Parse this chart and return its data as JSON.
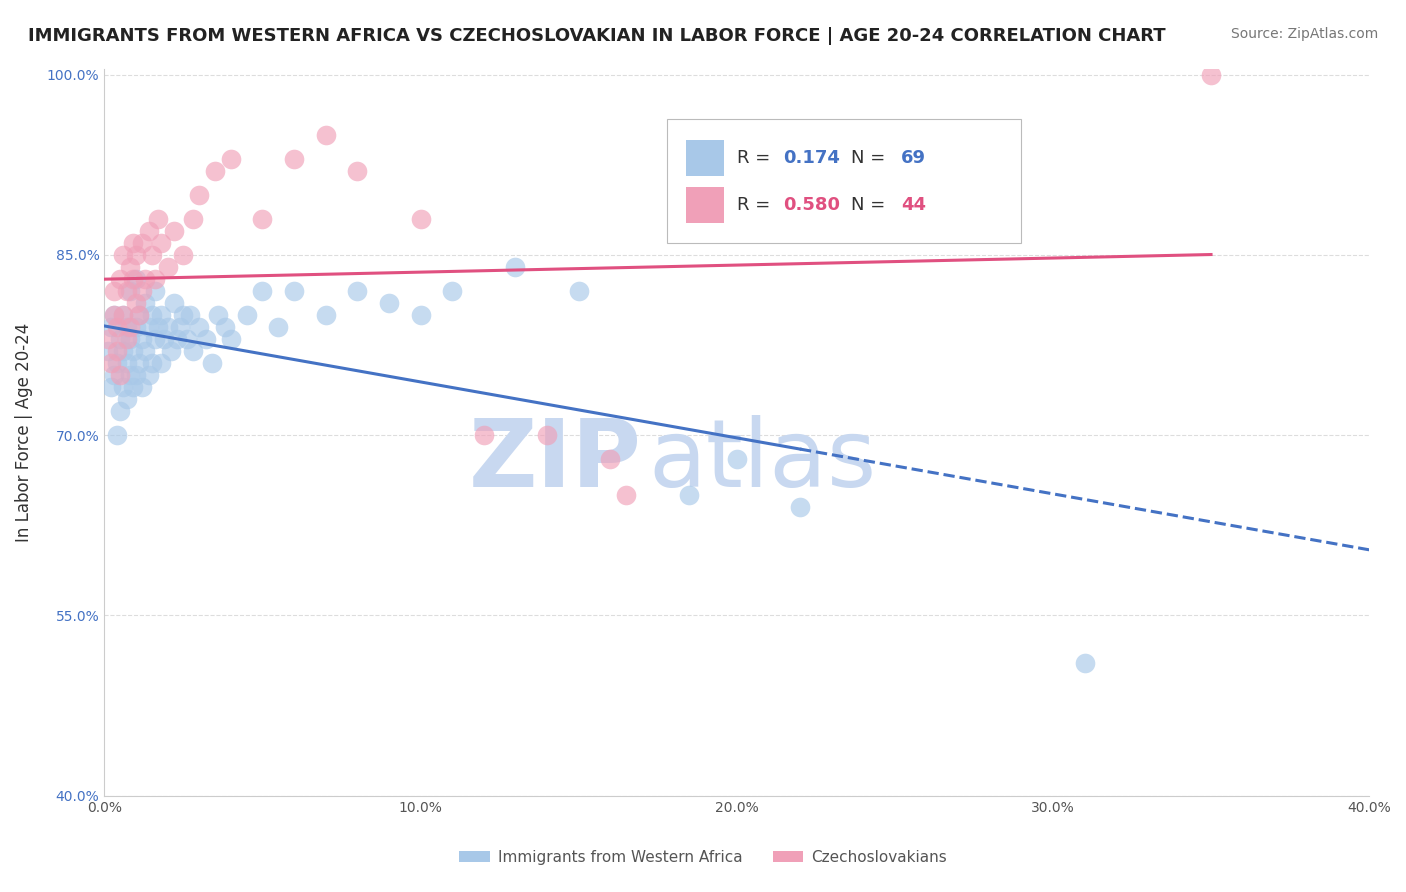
{
  "title": "IMMIGRANTS FROM WESTERN AFRICA VS CZECHOSLOVAKIAN IN LABOR FORCE | AGE 20-24 CORRELATION CHART",
  "source": "Source: ZipAtlas.com",
  "ylabel": "In Labor Force | Age 20-24",
  "xlim": [
    0.0,
    0.4
  ],
  "ylim": [
    0.4,
    1.005
  ],
  "xticks": [
    0.0,
    0.1,
    0.2,
    0.3,
    0.4
  ],
  "xtick_labels": [
    "0.0%",
    "10.0%",
    "20.0%",
    "30.0%",
    "40.0%"
  ],
  "yticks": [
    0.4,
    0.55,
    0.7,
    0.85,
    1.0
  ],
  "ytick_labels": [
    "40.0%",
    "55.0%",
    "70.0%",
    "85.0%",
    "100.0%"
  ],
  "blue_color": "#A8C8E8",
  "pink_color": "#F0A0B8",
  "blue_line_color": "#4472C4",
  "pink_line_color": "#E05080",
  "blue_R": 0.174,
  "blue_N": 69,
  "pink_R": 0.58,
  "pink_N": 44,
  "blue_scatter_x": [
    0.001,
    0.002,
    0.002,
    0.003,
    0.003,
    0.004,
    0.004,
    0.005,
    0.005,
    0.006,
    0.006,
    0.006,
    0.007,
    0.007,
    0.007,
    0.008,
    0.008,
    0.008,
    0.009,
    0.009,
    0.01,
    0.01,
    0.01,
    0.011,
    0.011,
    0.012,
    0.012,
    0.013,
    0.013,
    0.014,
    0.014,
    0.015,
    0.015,
    0.016,
    0.016,
    0.017,
    0.018,
    0.018,
    0.019,
    0.02,
    0.021,
    0.022,
    0.023,
    0.024,
    0.025,
    0.026,
    0.027,
    0.028,
    0.03,
    0.032,
    0.034,
    0.036,
    0.038,
    0.04,
    0.045,
    0.05,
    0.055,
    0.06,
    0.07,
    0.08,
    0.09,
    0.1,
    0.11,
    0.13,
    0.15,
    0.185,
    0.2,
    0.22,
    0.31
  ],
  "blue_scatter_y": [
    0.77,
    0.74,
    0.79,
    0.75,
    0.8,
    0.7,
    0.76,
    0.72,
    0.78,
    0.74,
    0.77,
    0.8,
    0.73,
    0.76,
    0.79,
    0.75,
    0.78,
    0.82,
    0.74,
    0.77,
    0.75,
    0.79,
    0.83,
    0.76,
    0.8,
    0.74,
    0.78,
    0.77,
    0.81,
    0.75,
    0.79,
    0.76,
    0.8,
    0.78,
    0.82,
    0.79,
    0.76,
    0.8,
    0.78,
    0.79,
    0.77,
    0.81,
    0.78,
    0.79,
    0.8,
    0.78,
    0.8,
    0.77,
    0.79,
    0.78,
    0.76,
    0.8,
    0.79,
    0.78,
    0.8,
    0.82,
    0.79,
    0.82,
    0.8,
    0.82,
    0.81,
    0.8,
    0.82,
    0.84,
    0.82,
    0.65,
    0.68,
    0.64,
    0.51
  ],
  "pink_scatter_x": [
    0.001,
    0.002,
    0.003,
    0.003,
    0.004,
    0.004,
    0.005,
    0.005,
    0.006,
    0.006,
    0.007,
    0.007,
    0.008,
    0.008,
    0.009,
    0.009,
    0.01,
    0.01,
    0.011,
    0.012,
    0.012,
    0.013,
    0.014,
    0.015,
    0.016,
    0.017,
    0.018,
    0.02,
    0.022,
    0.025,
    0.028,
    0.03,
    0.035,
    0.04,
    0.05,
    0.06,
    0.07,
    0.08,
    0.1,
    0.12,
    0.14,
    0.16,
    0.165,
    0.35
  ],
  "pink_scatter_y": [
    0.78,
    0.76,
    0.8,
    0.82,
    0.77,
    0.79,
    0.75,
    0.83,
    0.8,
    0.85,
    0.78,
    0.82,
    0.79,
    0.84,
    0.83,
    0.86,
    0.81,
    0.85,
    0.8,
    0.82,
    0.86,
    0.83,
    0.87,
    0.85,
    0.83,
    0.88,
    0.86,
    0.84,
    0.87,
    0.85,
    0.88,
    0.9,
    0.92,
    0.93,
    0.88,
    0.93,
    0.95,
    0.92,
    0.88,
    0.7,
    0.7,
    0.68,
    0.65,
    1.0
  ],
  "watermark_zip": "ZIP",
  "watermark_atlas": "atlas",
  "watermark_color": "#C8D8F0",
  "background_color": "#FFFFFF",
  "grid_color": "#DDDDDD",
  "legend_items": [
    {
      "color": "#A8C8E8",
      "R": "0.174",
      "N": "69",
      "text_color": "#4472C4"
    },
    {
      "color": "#F0A0B8",
      "R": "0.580",
      "N": "44",
      "text_color": "#E05080"
    }
  ],
  "bottom_legend": [
    "Immigrants from Western Africa",
    "Czechoslovakians"
  ]
}
